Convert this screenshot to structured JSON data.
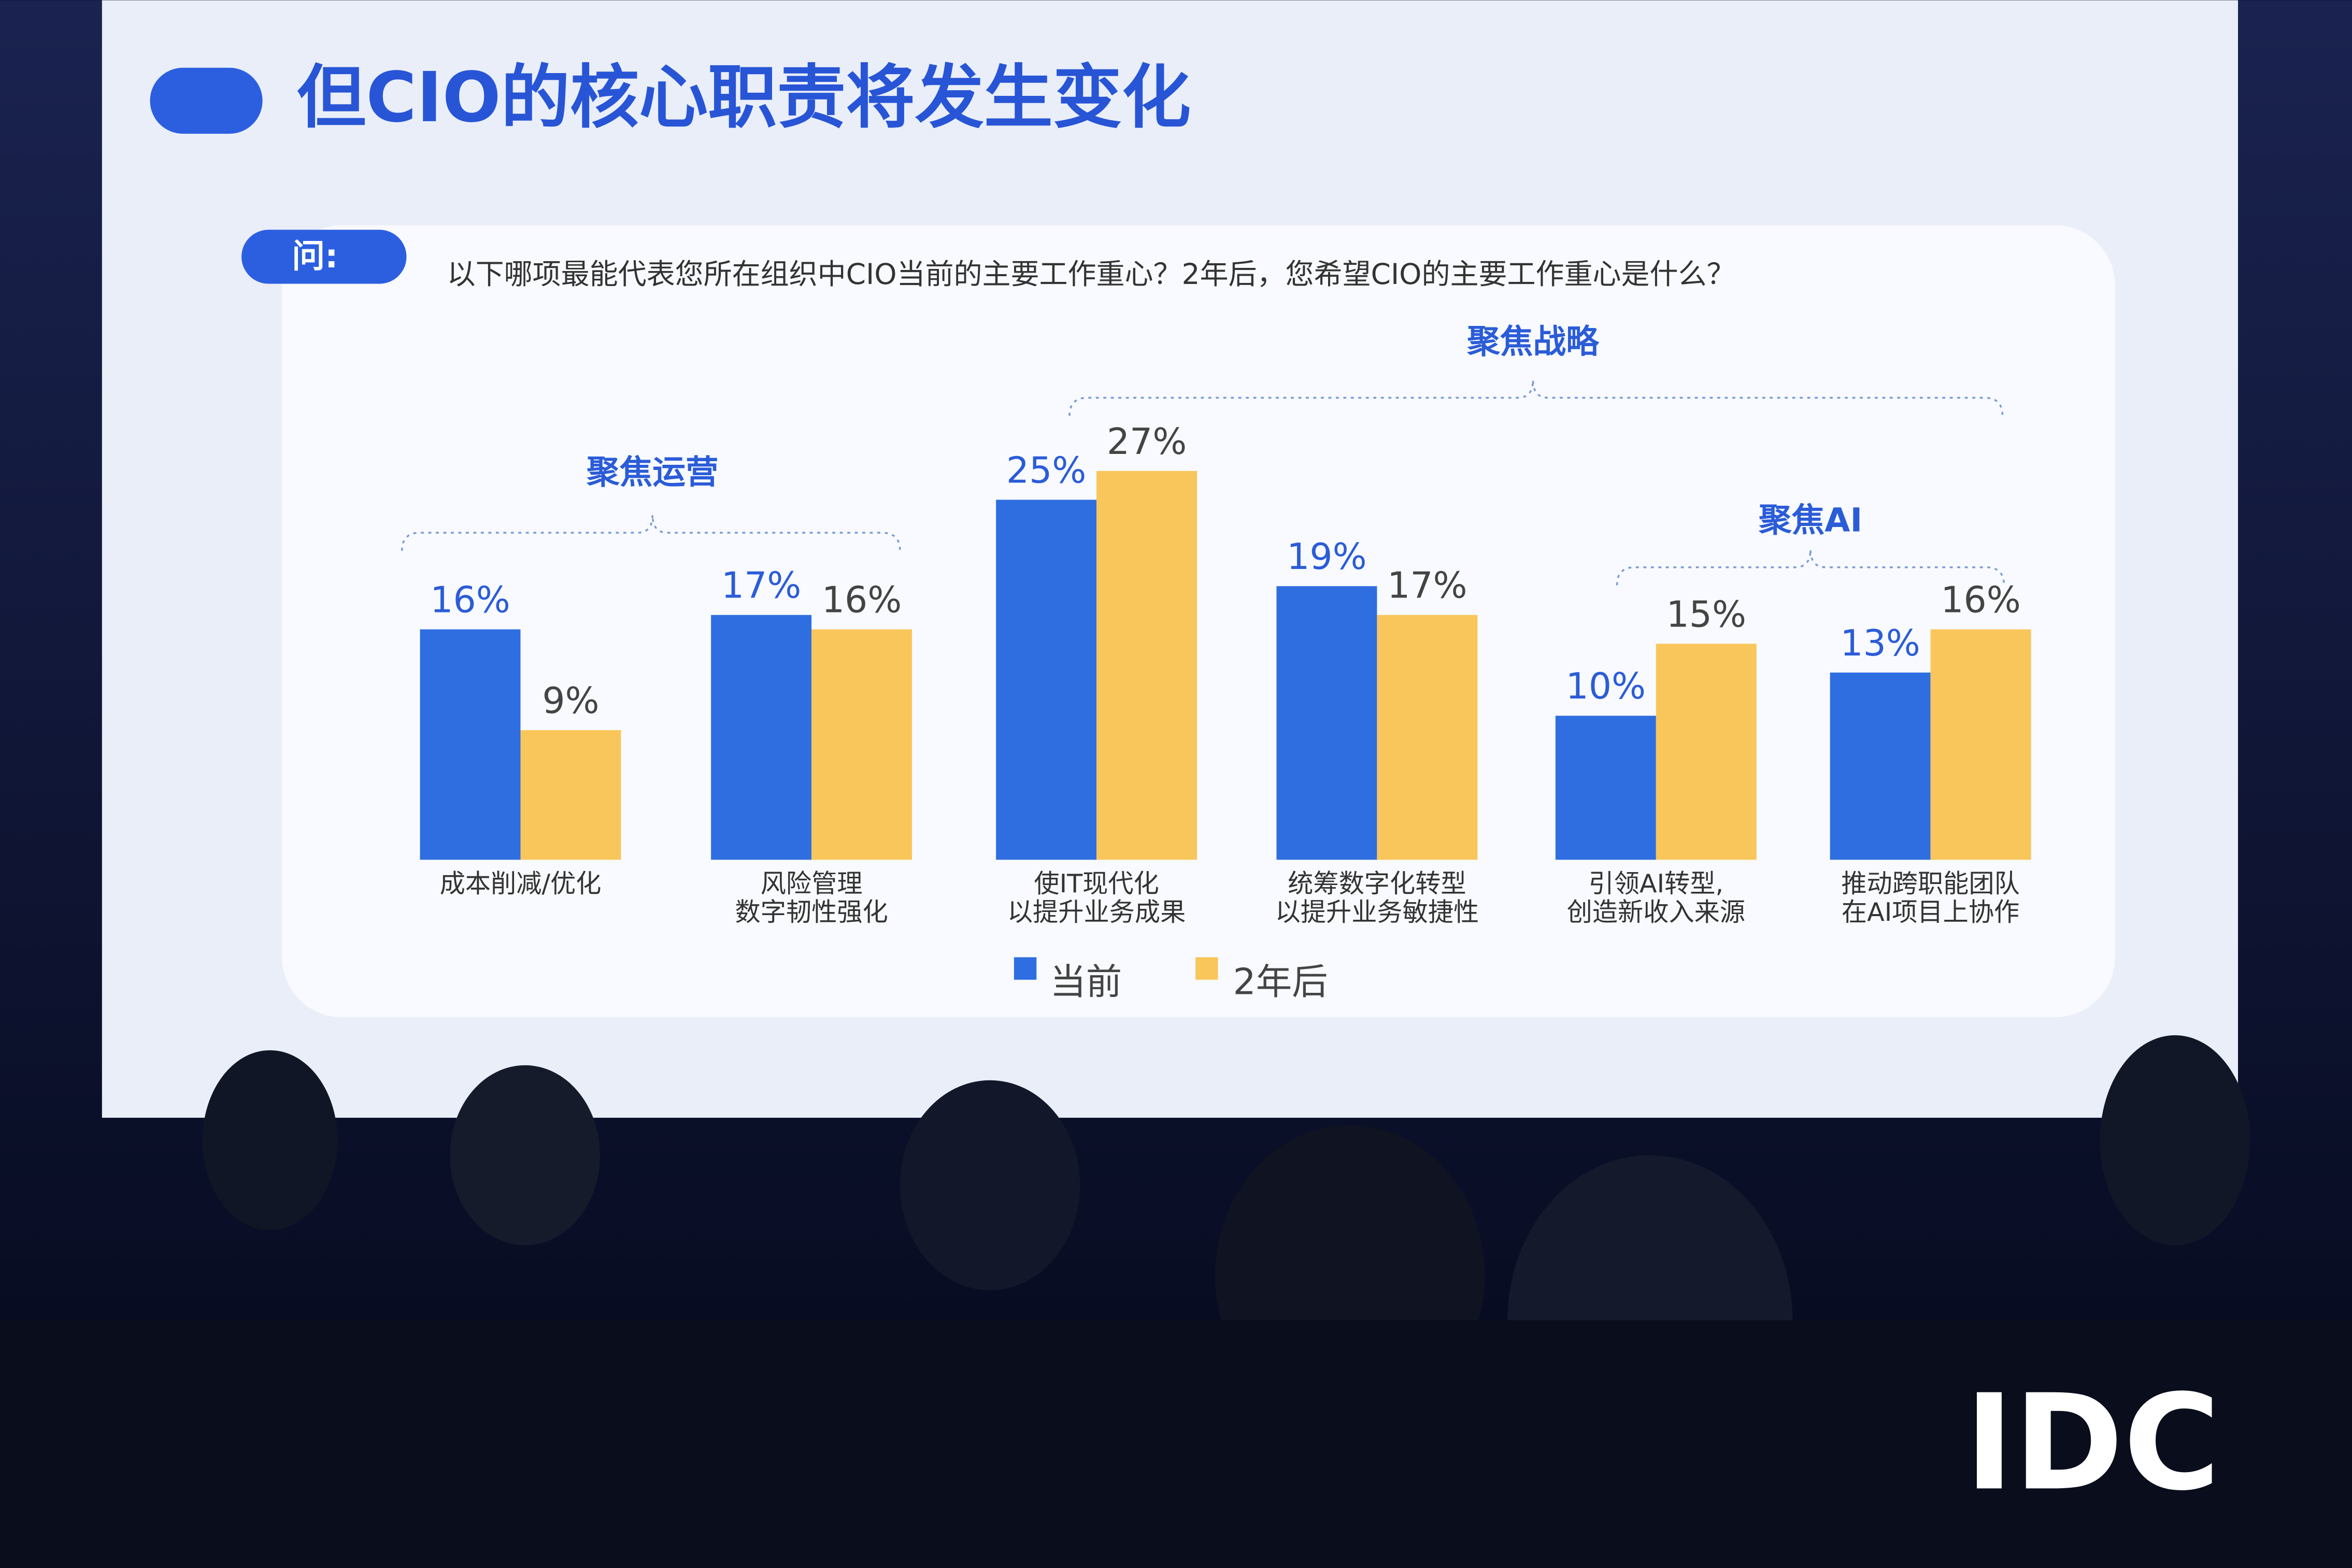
{
  "chart_data": {
    "type": "bar",
    "title": "但CIO的核心职责将发生变化",
    "question_label": "问:",
    "subtitle": "以下哪项最能代表您所在组织中CIO当前的主要工作重心？2年后，您希望CIO的主要工作重心是什么？",
    "annotations": [
      "聚焦运营",
      "聚焦战略",
      "聚焦AI"
    ],
    "categories": [
      [
        "成本削减/优化"
      ],
      [
        "风险管理",
        "数字韧性强化"
      ],
      [
        "使IT现代化",
        "以提升业务成果"
      ],
      [
        "统筹数字化转型",
        "以提升业务敏捷性"
      ],
      [
        "引领AI转型,",
        "创造新收入来源"
      ],
      [
        "推动跨职能团队",
        "在AI项目上协作"
      ]
    ],
    "series": [
      {
        "name": "当前",
        "color": "#2f6ee0",
        "values": [
          16,
          17,
          25,
          19,
          10,
          13
        ],
        "value_labels": [
          "16%",
          "17%",
          "25%",
          "19%",
          "10%",
          "13%"
        ]
      },
      {
        "name": "2年后",
        "color": "#f8c65a",
        "values": [
          9,
          16,
          27,
          17,
          15,
          16
        ],
        "value_labels": [
          "9%",
          "16%",
          "27%",
          "17%",
          "15%",
          "16%"
        ]
      }
    ],
    "logo": "IDC"
  }
}
